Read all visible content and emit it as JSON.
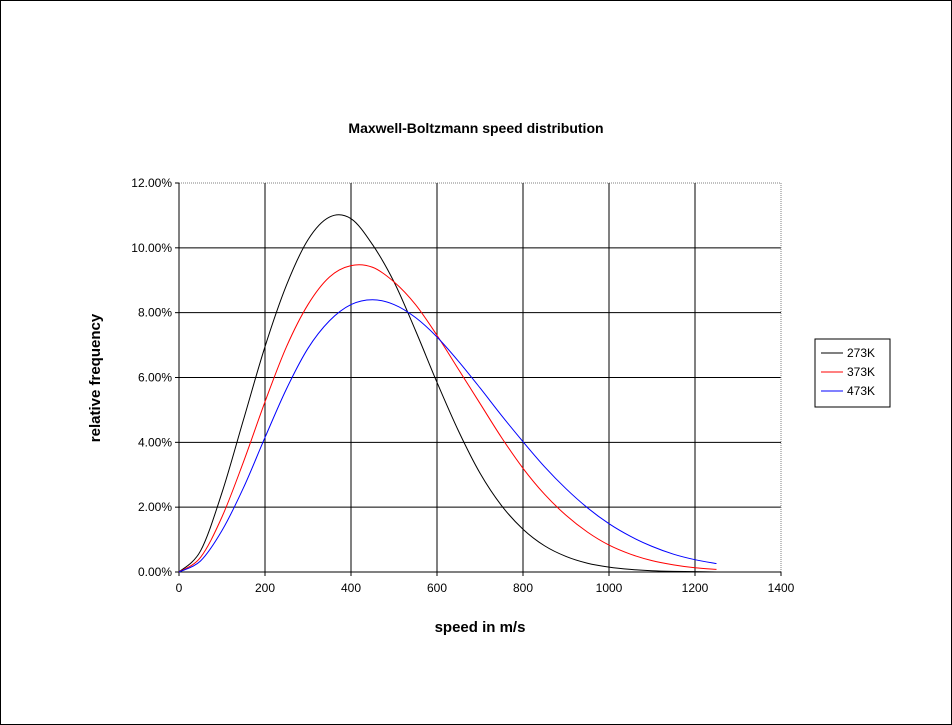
{
  "chart_data": {
    "type": "line",
    "title": "Maxwell-Boltzmann speed distribution",
    "xlabel": "speed in m/s",
    "ylabel": "relative frequency",
    "xlim": [
      0,
      1400
    ],
    "ylim": [
      0,
      0.12
    ],
    "xticks": [
      "0",
      "200",
      "400",
      "600",
      "800",
      "1000",
      "1200",
      "1400"
    ],
    "yticks": [
      "0.00%",
      "2.00%",
      "4.00%",
      "6.00%",
      "8.00%",
      "10.00%",
      "12.00%"
    ],
    "grid": true,
    "legend_position": "right",
    "x": [
      0,
      50,
      100,
      150,
      200,
      250,
      300,
      350,
      400,
      450,
      500,
      550,
      600,
      650,
      700,
      750,
      800,
      850,
      900,
      950,
      1000,
      1050,
      1100,
      1150,
      1200,
      1250
    ],
    "series": [
      {
        "name": "273K",
        "color": "#000000",
        "values": [
          0.0,
          0.0065,
          0.0245,
          0.047,
          0.0695,
          0.0885,
          0.1025,
          0.1095,
          0.109,
          0.101,
          0.0895,
          0.0745,
          0.0585,
          0.0435,
          0.0305,
          0.0205,
          0.0132,
          0.0081,
          0.0048,
          0.0027,
          0.0015,
          0.0008,
          0.0004,
          0.0002,
          0.0001,
          0.0
        ]
      },
      {
        "name": "373K",
        "color": "#ff0000",
        "values": [
          0.0,
          0.0045,
          0.017,
          0.034,
          0.0525,
          0.0695,
          0.0825,
          0.091,
          0.0945,
          0.094,
          0.0895,
          0.0825,
          0.073,
          0.0625,
          0.052,
          0.0415,
          0.032,
          0.024,
          0.0175,
          0.0123,
          0.0083,
          0.0055,
          0.0035,
          0.0022,
          0.0013,
          0.0008
        ]
      },
      {
        "name": "473K",
        "color": "#0000ff",
        "values": [
          0.0,
          0.0034,
          0.0128,
          0.026,
          0.0415,
          0.0565,
          0.069,
          0.0775,
          0.0825,
          0.084,
          0.0825,
          0.0785,
          0.0725,
          0.065,
          0.0568,
          0.0483,
          0.0402,
          0.0325,
          0.0257,
          0.0198,
          0.0149,
          0.011,
          0.0079,
          0.0055,
          0.0038,
          0.0026
        ]
      }
    ]
  }
}
